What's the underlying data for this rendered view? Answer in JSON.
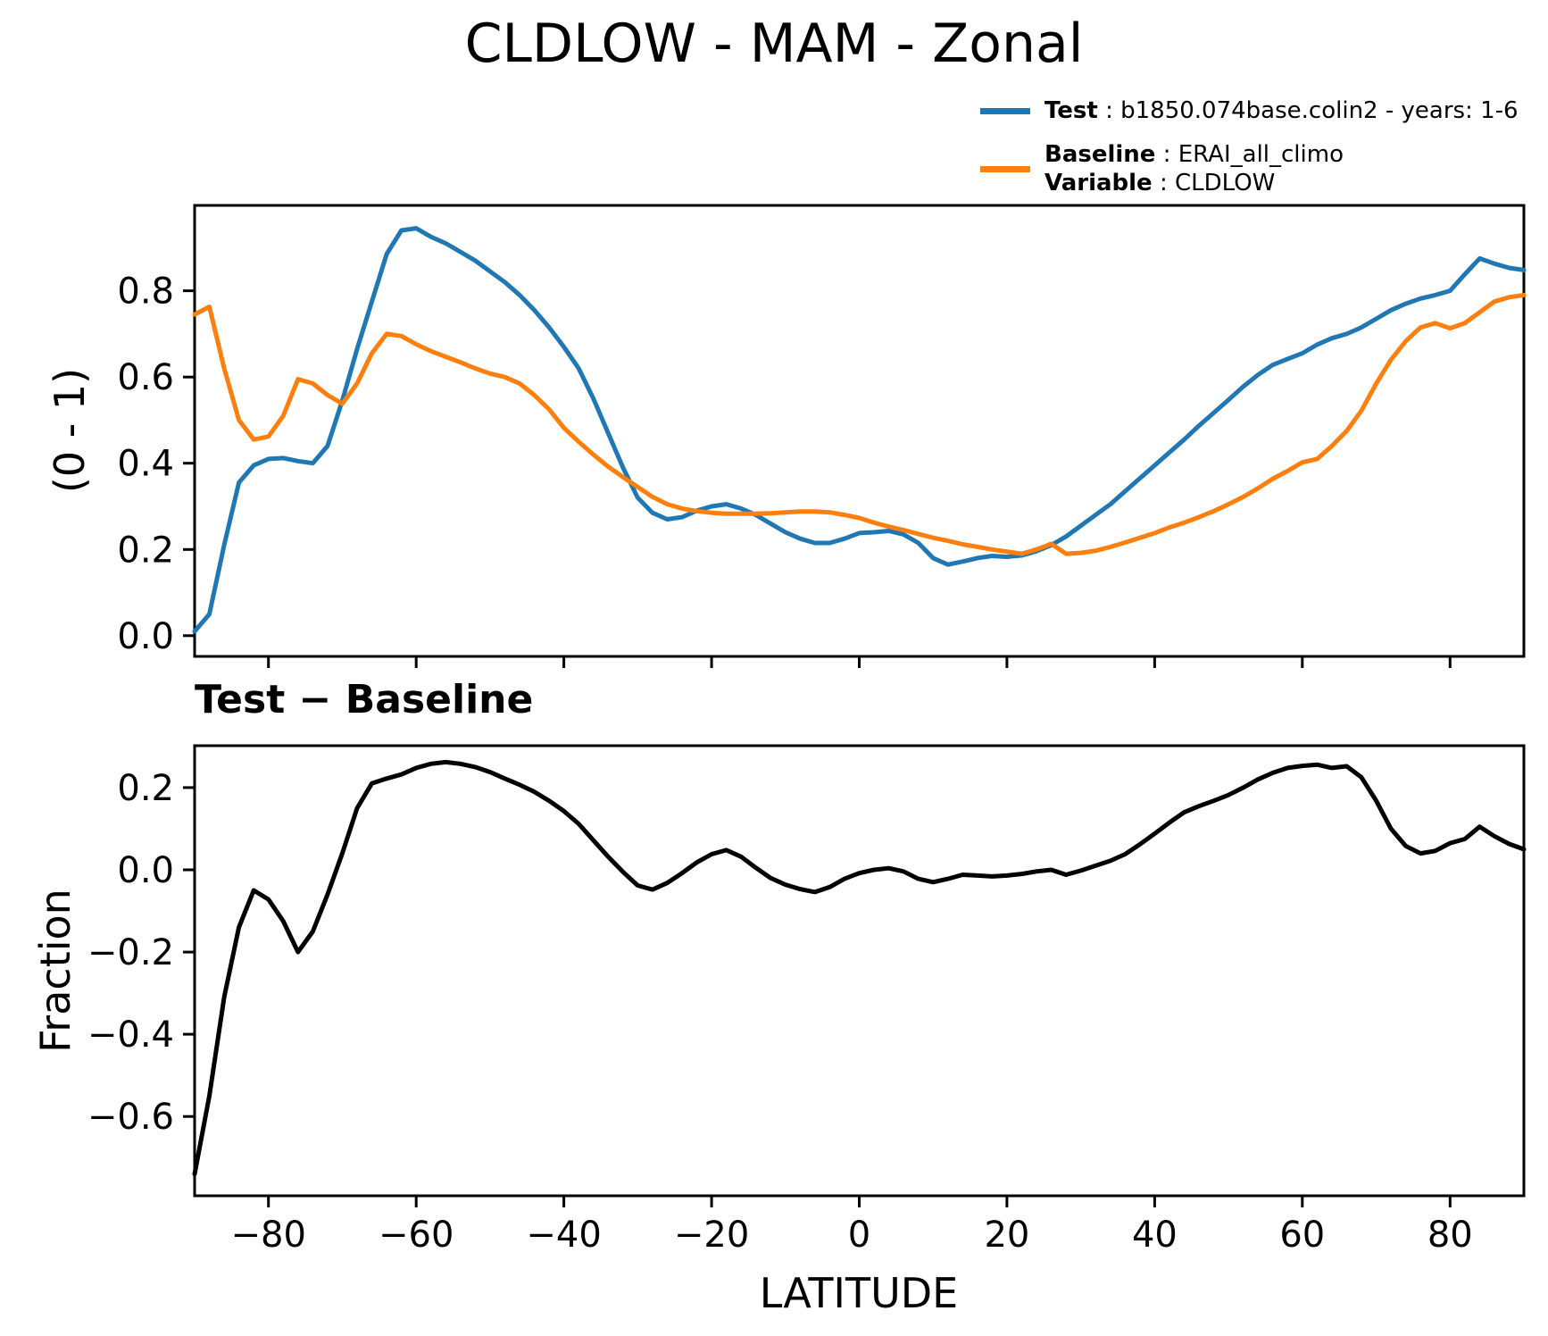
{
  "title": "CLDLOW - MAM - Zonal",
  "legend": {
    "test_label": "Test",
    "test_rest": " : b1850.074base.colin2 - years: 1-6",
    "baseline_label": "Baseline",
    "baseline_rest": " : ERAI_all_climo",
    "variable_label": "Variable",
    "variable_rest": " : CLDLOW"
  },
  "panel2_title": "Test − Baseline",
  "axis_labels": {
    "top_ylabel": "(0 - 1)",
    "bottom_ylabel": "Fraction",
    "xlabel": "LATITUDE"
  },
  "colors": {
    "test": "#1f77b4",
    "baseline": "#ff7f0e",
    "diff": "#000000",
    "axis": "#000000",
    "background": "#ffffff"
  },
  "chart_data": [
    {
      "type": "line",
      "title": "",
      "xlabel": "",
      "ylabel": "(0 - 1)",
      "legend_position": "above-axes top-right",
      "grid": false,
      "xlim": [
        -90,
        90
      ],
      "ylim": [
        -0.048,
        0.998
      ],
      "xticks": [
        -80,
        -60,
        -40,
        -20,
        0,
        20,
        40,
        60,
        80
      ],
      "xtick_labels_shown": false,
      "yticks": [
        0.0,
        0.2,
        0.4,
        0.6,
        0.8
      ],
      "ytick_labels": [
        "0.0",
        "0.2",
        "0.4",
        "0.6",
        "0.8"
      ],
      "x": [
        -90,
        -88,
        -86,
        -84,
        -82,
        -80,
        -78,
        -76,
        -74,
        -72,
        -70,
        -68,
        -66,
        -64,
        -62,
        -60,
        -58,
        -56,
        -54,
        -52,
        -50,
        -48,
        -46,
        -44,
        -42,
        -40,
        -38,
        -36,
        -34,
        -32,
        -30,
        -28,
        -26,
        -24,
        -22,
        -20,
        -18,
        -16,
        -14,
        -12,
        -10,
        -8,
        -6,
        -4,
        -2,
        0,
        2,
        4,
        6,
        8,
        10,
        12,
        14,
        16,
        18,
        20,
        22,
        24,
        26,
        28,
        30,
        32,
        34,
        36,
        38,
        40,
        42,
        44,
        46,
        48,
        50,
        52,
        54,
        56,
        58,
        60,
        62,
        64,
        66,
        68,
        70,
        72,
        74,
        76,
        78,
        80,
        82,
        84,
        86,
        88,
        90
      ],
      "series": [
        {
          "name": "Test",
          "color": "#1f77b4",
          "values": [
            0.01,
            0.05,
            0.21,
            0.355,
            0.395,
            0.41,
            0.412,
            0.405,
            0.4,
            0.44,
            0.545,
            0.665,
            0.775,
            0.885,
            0.94,
            0.945,
            0.925,
            0.91,
            0.89,
            0.87,
            0.845,
            0.82,
            0.79,
            0.755,
            0.715,
            0.67,
            0.62,
            0.55,
            0.47,
            0.39,
            0.32,
            0.285,
            0.27,
            0.275,
            0.29,
            0.3,
            0.305,
            0.295,
            0.28,
            0.26,
            0.24,
            0.225,
            0.215,
            0.215,
            0.225,
            0.238,
            0.24,
            0.243,
            0.235,
            0.215,
            0.18,
            0.165,
            0.172,
            0.18,
            0.185,
            0.183,
            0.186,
            0.196,
            0.21,
            0.23,
            0.255,
            0.28,
            0.305,
            0.335,
            0.365,
            0.395,
            0.425,
            0.455,
            0.487,
            0.517,
            0.547,
            0.578,
            0.605,
            0.628,
            0.642,
            0.655,
            0.675,
            0.69,
            0.7,
            0.715,
            0.735,
            0.755,
            0.77,
            0.782,
            0.79,
            0.8,
            0.838,
            0.875,
            0.863,
            0.853,
            0.848
          ]
        },
        {
          "name": "Baseline",
          "color": "#ff7f0e",
          "values": [
            0.745,
            0.763,
            0.62,
            0.5,
            0.455,
            0.462,
            0.51,
            0.595,
            0.585,
            0.558,
            0.538,
            0.585,
            0.655,
            0.7,
            0.695,
            0.676,
            0.66,
            0.647,
            0.634,
            0.62,
            0.608,
            0.6,
            0.585,
            0.558,
            0.525,
            0.482,
            0.45,
            0.42,
            0.392,
            0.368,
            0.345,
            0.322,
            0.305,
            0.295,
            0.289,
            0.285,
            0.283,
            0.283,
            0.283,
            0.284,
            0.286,
            0.288,
            0.288,
            0.286,
            0.28,
            0.273,
            0.262,
            0.253,
            0.245,
            0.236,
            0.227,
            0.22,
            0.212,
            0.206,
            0.2,
            0.195,
            0.19,
            0.2,
            0.213,
            0.19,
            0.192,
            0.197,
            0.206,
            0.216,
            0.227,
            0.238,
            0.251,
            0.262,
            0.275,
            0.289,
            0.305,
            0.322,
            0.342,
            0.364,
            0.382,
            0.402,
            0.41,
            0.44,
            0.475,
            0.522,
            0.585,
            0.64,
            0.683,
            0.715,
            0.725,
            0.713,
            0.725,
            0.75,
            0.775,
            0.785,
            0.79
          ]
        }
      ]
    },
    {
      "type": "line",
      "title": "Test − Baseline",
      "xlabel": "LATITUDE",
      "ylabel": "Fraction",
      "grid": false,
      "xlim": [
        -90,
        90
      ],
      "ylim": [
        -0.793,
        0.302
      ],
      "xticks": [
        -80,
        -60,
        -40,
        -20,
        0,
        20,
        40,
        60,
        80
      ],
      "xtick_labels": [
        "−80",
        "−60",
        "−40",
        "−20",
        "0",
        "20",
        "40",
        "60",
        "80"
      ],
      "yticks": [
        0.2,
        0.0,
        -0.2,
        -0.4,
        -0.6
      ],
      "ytick_labels": [
        "0.2",
        "0.0",
        "−0.2",
        "−0.4",
        "−0.6"
      ],
      "x": [
        -90,
        -88,
        -86,
        -84,
        -82,
        -80,
        -78,
        -76,
        -74,
        -72,
        -70,
        -68,
        -66,
        -64,
        -62,
        -60,
        -58,
        -56,
        -54,
        -52,
        -50,
        -48,
        -46,
        -44,
        -42,
        -40,
        -38,
        -36,
        -34,
        -32,
        -30,
        -28,
        -26,
        -24,
        -22,
        -20,
        -18,
        -16,
        -14,
        -12,
        -10,
        -8,
        -6,
        -4,
        -2,
        0,
        2,
        4,
        6,
        8,
        10,
        12,
        14,
        16,
        18,
        20,
        22,
        24,
        26,
        28,
        30,
        32,
        34,
        36,
        38,
        40,
        42,
        44,
        46,
        48,
        50,
        52,
        54,
        56,
        58,
        60,
        62,
        64,
        66,
        68,
        70,
        72,
        74,
        76,
        78,
        80,
        82,
        84,
        86,
        88,
        90
      ],
      "series": [
        {
          "name": "Test - Baseline",
          "color": "#000000",
          "values": [
            -0.74,
            -0.55,
            -0.31,
            -0.14,
            -0.05,
            -0.072,
            -0.125,
            -0.2,
            -0.15,
            -0.06,
            0.04,
            0.15,
            0.21,
            0.222,
            0.232,
            0.248,
            0.258,
            0.262,
            0.258,
            0.25,
            0.238,
            0.222,
            0.207,
            0.19,
            0.168,
            0.143,
            0.112,
            0.072,
            0.032,
            -0.005,
            -0.038,
            -0.048,
            -0.032,
            -0.008,
            0.018,
            0.038,
            0.048,
            0.032,
            0.005,
            -0.02,
            -0.036,
            -0.047,
            -0.054,
            -0.042,
            -0.022,
            -0.008,
            0.0,
            0.004,
            -0.004,
            -0.022,
            -0.03,
            -0.022,
            -0.012,
            -0.014,
            -0.016,
            -0.014,
            -0.01,
            -0.004,
            0.0,
            -0.012,
            -0.002,
            0.01,
            0.022,
            0.038,
            0.062,
            0.088,
            0.115,
            0.14,
            0.155,
            0.168,
            0.182,
            0.2,
            0.22,
            0.236,
            0.248,
            0.253,
            0.256,
            0.248,
            0.252,
            0.225,
            0.168,
            0.1,
            0.058,
            0.04,
            0.046,
            0.065,
            0.075,
            0.105,
            0.082,
            0.063,
            0.05
          ]
        }
      ]
    }
  ]
}
